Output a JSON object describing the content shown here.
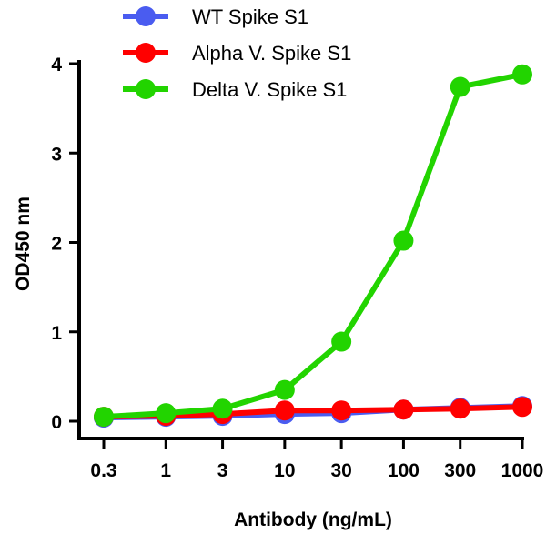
{
  "chart_data": {
    "type": "line",
    "title": "",
    "xlabel": "Antibody (ng/mL)",
    "ylabel": "OD450 nm",
    "x_scale": "log",
    "x": [
      0.3,
      1,
      3,
      10,
      30,
      100,
      300,
      1000
    ],
    "x_tick_labels": [
      "0.3",
      "1",
      "3",
      "10",
      "30",
      "100",
      "300",
      "1000"
    ],
    "ylim": [
      0,
      4
    ],
    "y_ticks": [
      0,
      1,
      2,
      3,
      4
    ],
    "y_tick_labels": [
      "0",
      "1",
      "2",
      "3",
      "4"
    ],
    "grid": false,
    "legend": "top-left",
    "series": [
      {
        "name": "WT Spike S1",
        "color": "#4a5cf0",
        "values": [
          0.04,
          0.05,
          0.06,
          0.08,
          0.09,
          0.13,
          0.15,
          0.17
        ]
      },
      {
        "name": "Alpha V. Spike S1",
        "color": "#ff0000",
        "values": [
          0.05,
          0.06,
          0.08,
          0.12,
          0.12,
          0.13,
          0.14,
          0.16
        ]
      },
      {
        "name": "Delta V. Spike S1",
        "color": "#22d400",
        "values": [
          0.05,
          0.09,
          0.14,
          0.35,
          0.89,
          2.02,
          3.74,
          3.88
        ]
      }
    ]
  }
}
